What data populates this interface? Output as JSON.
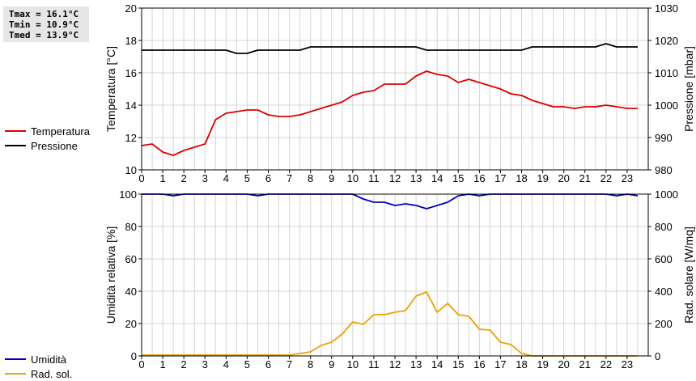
{
  "stats": {
    "tmax": "Tmax = 16.1°C",
    "tmin": "Tmin = 10.9°C",
    "tmed": "Tmed = 13.9°C"
  },
  "legend_top": [
    {
      "label": "Temperatura",
      "color": "#dd0000"
    },
    {
      "label": "Pressione",
      "color": "#000000"
    }
  ],
  "legend_bottom": [
    {
      "label": "Umidità",
      "color": "#0000bb"
    },
    {
      "label": "Rad. sol.",
      "color": "#f0a000"
    }
  ],
  "chart_data": [
    {
      "type": "line",
      "ylabel": "Temperatura [°C]",
      "y2label": "Pressione [mbar]",
      "xlim": [
        0,
        24
      ],
      "ylim": [
        10,
        20
      ],
      "y2lim": [
        980,
        1030
      ],
      "xticks": [
        "0",
        "1",
        "2",
        "3",
        "4",
        "5",
        "6",
        "7",
        "8",
        "9",
        "10",
        "11",
        "12",
        "13",
        "14",
        "15",
        "16",
        "17",
        "18",
        "19",
        "20",
        "21",
        "22",
        "23"
      ],
      "yticks": [
        "10",
        "12",
        "14",
        "16",
        "18",
        "20"
      ],
      "y2ticks": [
        "980",
        "990",
        "1000",
        "1010",
        "1020",
        "1030"
      ],
      "grid": true,
      "series": [
        {
          "name": "Temperatura",
          "axis": "left",
          "color": "#dd0000",
          "x": [
            0,
            0.5,
            1,
            1.5,
            2,
            2.5,
            3,
            3.5,
            4,
            4.5,
            5,
            5.5,
            6,
            6.5,
            7,
            7.5,
            8,
            8.5,
            9,
            9.5,
            10,
            10.5,
            11,
            11.5,
            12,
            12.5,
            13,
            13.5,
            14,
            14.5,
            15,
            15.5,
            16,
            16.5,
            17,
            17.5,
            18,
            18.5,
            19,
            19.5,
            20,
            20.5,
            21,
            21.5,
            22,
            22.5,
            23,
            23.5
          ],
          "y": [
            11.5,
            11.6,
            11.1,
            10.9,
            11.2,
            11.4,
            11.6,
            13.1,
            13.5,
            13.6,
            13.7,
            13.7,
            13.4,
            13.3,
            13.3,
            13.4,
            13.6,
            13.8,
            14.0,
            14.2,
            14.6,
            14.8,
            14.9,
            15.3,
            15.3,
            15.3,
            15.8,
            16.1,
            15.9,
            15.8,
            15.4,
            15.6,
            15.4,
            15.2,
            15.0,
            14.7,
            14.6,
            14.3,
            14.1,
            13.9,
            13.9,
            13.8,
            13.9,
            13.9,
            14.0,
            13.9,
            13.8,
            13.8
          ]
        },
        {
          "name": "Pressione",
          "axis": "right",
          "color": "#000000",
          "x": [
            0,
            0.5,
            1,
            1.5,
            2,
            2.5,
            3,
            3.5,
            4,
            4.5,
            5,
            5.5,
            6,
            6.5,
            7,
            7.5,
            8,
            8.5,
            9,
            9.5,
            10,
            10.5,
            11,
            11.5,
            12,
            12.5,
            13,
            13.5,
            14,
            14.5,
            15,
            15.5,
            16,
            16.5,
            17,
            17.5,
            18,
            18.5,
            19,
            19.5,
            20,
            20.5,
            21,
            21.5,
            22,
            22.5,
            23,
            23.5
          ],
          "y": [
            1017,
            1017,
            1017,
            1017,
            1017,
            1017,
            1017,
            1017,
            1017,
            1016,
            1016,
            1017,
            1017,
            1017,
            1017,
            1017,
            1018,
            1018,
            1018,
            1018,
            1018,
            1018,
            1018,
            1018,
            1018,
            1018,
            1018,
            1017,
            1017,
            1017,
            1017,
            1017,
            1017,
            1017,
            1017,
            1017,
            1017,
            1018,
            1018,
            1018,
            1018,
            1018,
            1018,
            1018,
            1019,
            1018,
            1018,
            1018
          ]
        }
      ]
    },
    {
      "type": "line",
      "ylabel": "Umidità relativa [%]",
      "y2label": "Rad. solare [W/mq]",
      "xlim": [
        0,
        24
      ],
      "ylim": [
        0,
        100
      ],
      "y2lim": [
        0,
        1000
      ],
      "xticks": [
        "0",
        "1",
        "2",
        "3",
        "4",
        "5",
        "6",
        "7",
        "8",
        "9",
        "10",
        "11",
        "12",
        "13",
        "14",
        "15",
        "16",
        "17",
        "18",
        "19",
        "20",
        "21",
        "22",
        "23"
      ],
      "yticks": [
        "0",
        "20",
        "40",
        "60",
        "80",
        "100"
      ],
      "y2ticks": [
        "0",
        "200",
        "400",
        "600",
        "800",
        "1000"
      ],
      "grid": true,
      "series": [
        {
          "name": "Umidità",
          "axis": "left",
          "color": "#0000bb",
          "x": [
            0,
            0.5,
            1,
            1.5,
            2,
            2.5,
            3,
            3.5,
            4,
            4.5,
            5,
            5.5,
            6,
            6.5,
            7,
            7.5,
            8,
            8.5,
            9,
            9.5,
            10,
            10.5,
            11,
            11.5,
            12,
            12.5,
            13,
            13.5,
            14,
            14.5,
            15,
            15.5,
            16,
            16.5,
            17,
            17.5,
            18,
            18.5,
            19,
            19.5,
            20,
            20.5,
            21,
            21.5,
            22,
            22.5,
            23,
            23.5
          ],
          "y": [
            100,
            100,
            100,
            99,
            100,
            100,
            100,
            100,
            100,
            100,
            100,
            99,
            100,
            100,
            100,
            100,
            100,
            100,
            100,
            100,
            100,
            97,
            95,
            95,
            93,
            94,
            93,
            91,
            93,
            95,
            99,
            100,
            99,
            100,
            100,
            100,
            100,
            100,
            100,
            100,
            100,
            100,
            100,
            100,
            100,
            99,
            100,
            99
          ]
        },
        {
          "name": "Rad. sol.",
          "axis": "right",
          "color": "#f0a000",
          "x": [
            0,
            0.5,
            1,
            1.5,
            2,
            2.5,
            3,
            3.5,
            4,
            4.5,
            5,
            5.5,
            6,
            6.5,
            7,
            7.5,
            8,
            8.5,
            9,
            9.5,
            10,
            10.5,
            11,
            11.5,
            12,
            12.5,
            13,
            13.5,
            14,
            14.5,
            15,
            15.5,
            16,
            16.5,
            17,
            17.5,
            18,
            18.5,
            19,
            19.5,
            20,
            20.5,
            21,
            21.5,
            22,
            22.5,
            23,
            23.5
          ],
          "y": [
            5,
            5,
            5,
            5,
            5,
            5,
            5,
            5,
            5,
            5,
            5,
            5,
            5,
            5,
            5,
            15,
            25,
            65,
            85,
            135,
            210,
            195,
            255,
            255,
            270,
            280,
            370,
            395,
            270,
            325,
            255,
            245,
            165,
            160,
            85,
            70,
            15,
            0,
            0,
            0,
            0,
            0,
            0,
            0,
            0,
            0,
            0,
            0
          ]
        }
      ]
    }
  ]
}
